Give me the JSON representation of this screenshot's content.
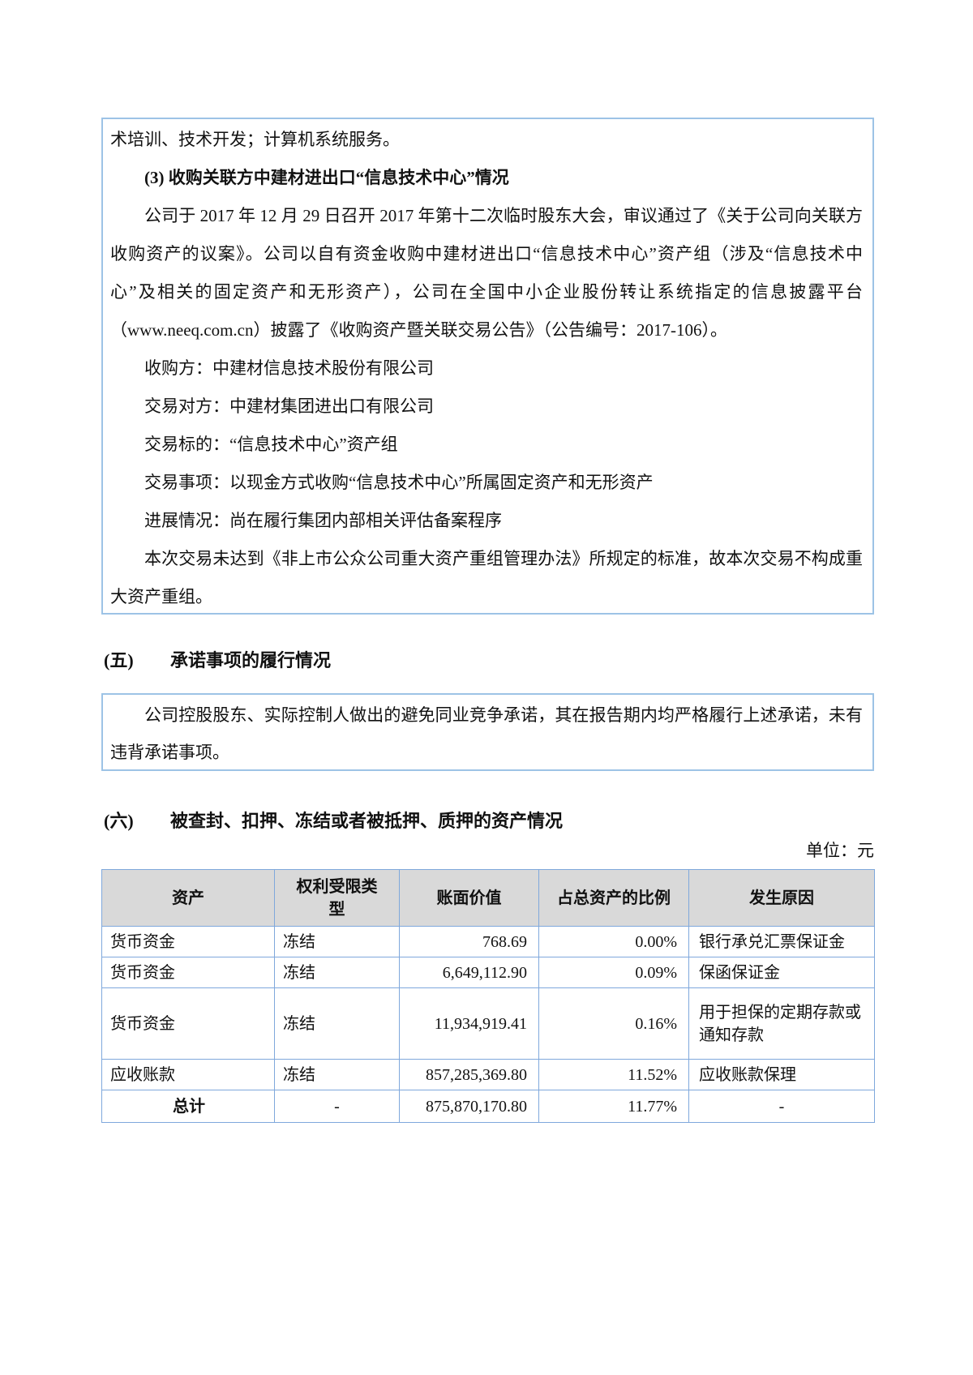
{
  "acquisition_box": {
    "continuation": "术培训、技术开发；计算机系统服务。",
    "heading": "(3) 收购关联方中建材进出口“信息技术中心”情况",
    "para1": "公司于 2017 年 12 月 29 日召开 2017 年第十二次临时股东大会，审议通过了《关于公司向关联方收购资产的议案》。公司以自有资金收购中建材进出口“信息技术中心”资产组（涉及“信息技术中心”及相关的固定资产和无形资产），公司在全国中小企业股份转让系统指定的信息披露平台（www.neeq.com.cn）披露了《收购资产暨关联交易公告》（公告编号：2017-106）。",
    "details": [
      "收购方：中建材信息技术股份有限公司",
      "交易对方：中建材集团进出口有限公司",
      "交易标的：“信息技术中心”资产组",
      "交易事项：以现金方式收购“信息技术中心”所属固定资产和无形资产",
      "进展情况：尚在履行集团内部相关评估备案程序"
    ],
    "para2": "本次交易未达到《非上市公众公司重大资产重组管理办法》所规定的标准，故本次交易不构成重大资产重组。"
  },
  "section_five": {
    "number": "(五)",
    "title": "承诺事项的履行情况",
    "body": "公司控股股东、实际控制人做出的避免同业竞争承诺，其在报告期内均严格履行上述承诺，未有违背承诺事项。"
  },
  "section_six": {
    "number": "(六)",
    "title": "被查封、扣押、冻结或者被抵押、质押的资产情况",
    "unit_label": "单位：元"
  },
  "assets_table": {
    "headers": [
      "资产",
      "权利受限类型",
      "账面价值",
      "占总资产的比例",
      "发生原因"
    ],
    "rows": [
      {
        "asset": "货币资金",
        "restriction": "冻结",
        "book_value": "768.69",
        "ratio": "0.00%",
        "reason": "银行承兑汇票保证金"
      },
      {
        "asset": "货币资金",
        "restriction": "冻结",
        "book_value": "6,649,112.90",
        "ratio": "0.09%",
        "reason": "保函保证金"
      },
      {
        "asset": "货币资金",
        "restriction": "冻结",
        "book_value": "11,934,919.41",
        "ratio": "0.16%",
        "reason": "用于担保的定期存款或通知存款"
      },
      {
        "asset": "应收账款",
        "restriction": "冻结",
        "book_value": "857,285,369.80",
        "ratio": "11.52%",
        "reason": "应收账款保理"
      },
      {
        "asset": "总计",
        "restriction": "-",
        "book_value": "875,870,170.80",
        "ratio": "11.77%",
        "reason": "-"
      }
    ]
  },
  "colors": {
    "box_border": "#9DC3E6",
    "table_border": "#7FA8DC",
    "table_header_bg": "#D9D9D9"
  }
}
